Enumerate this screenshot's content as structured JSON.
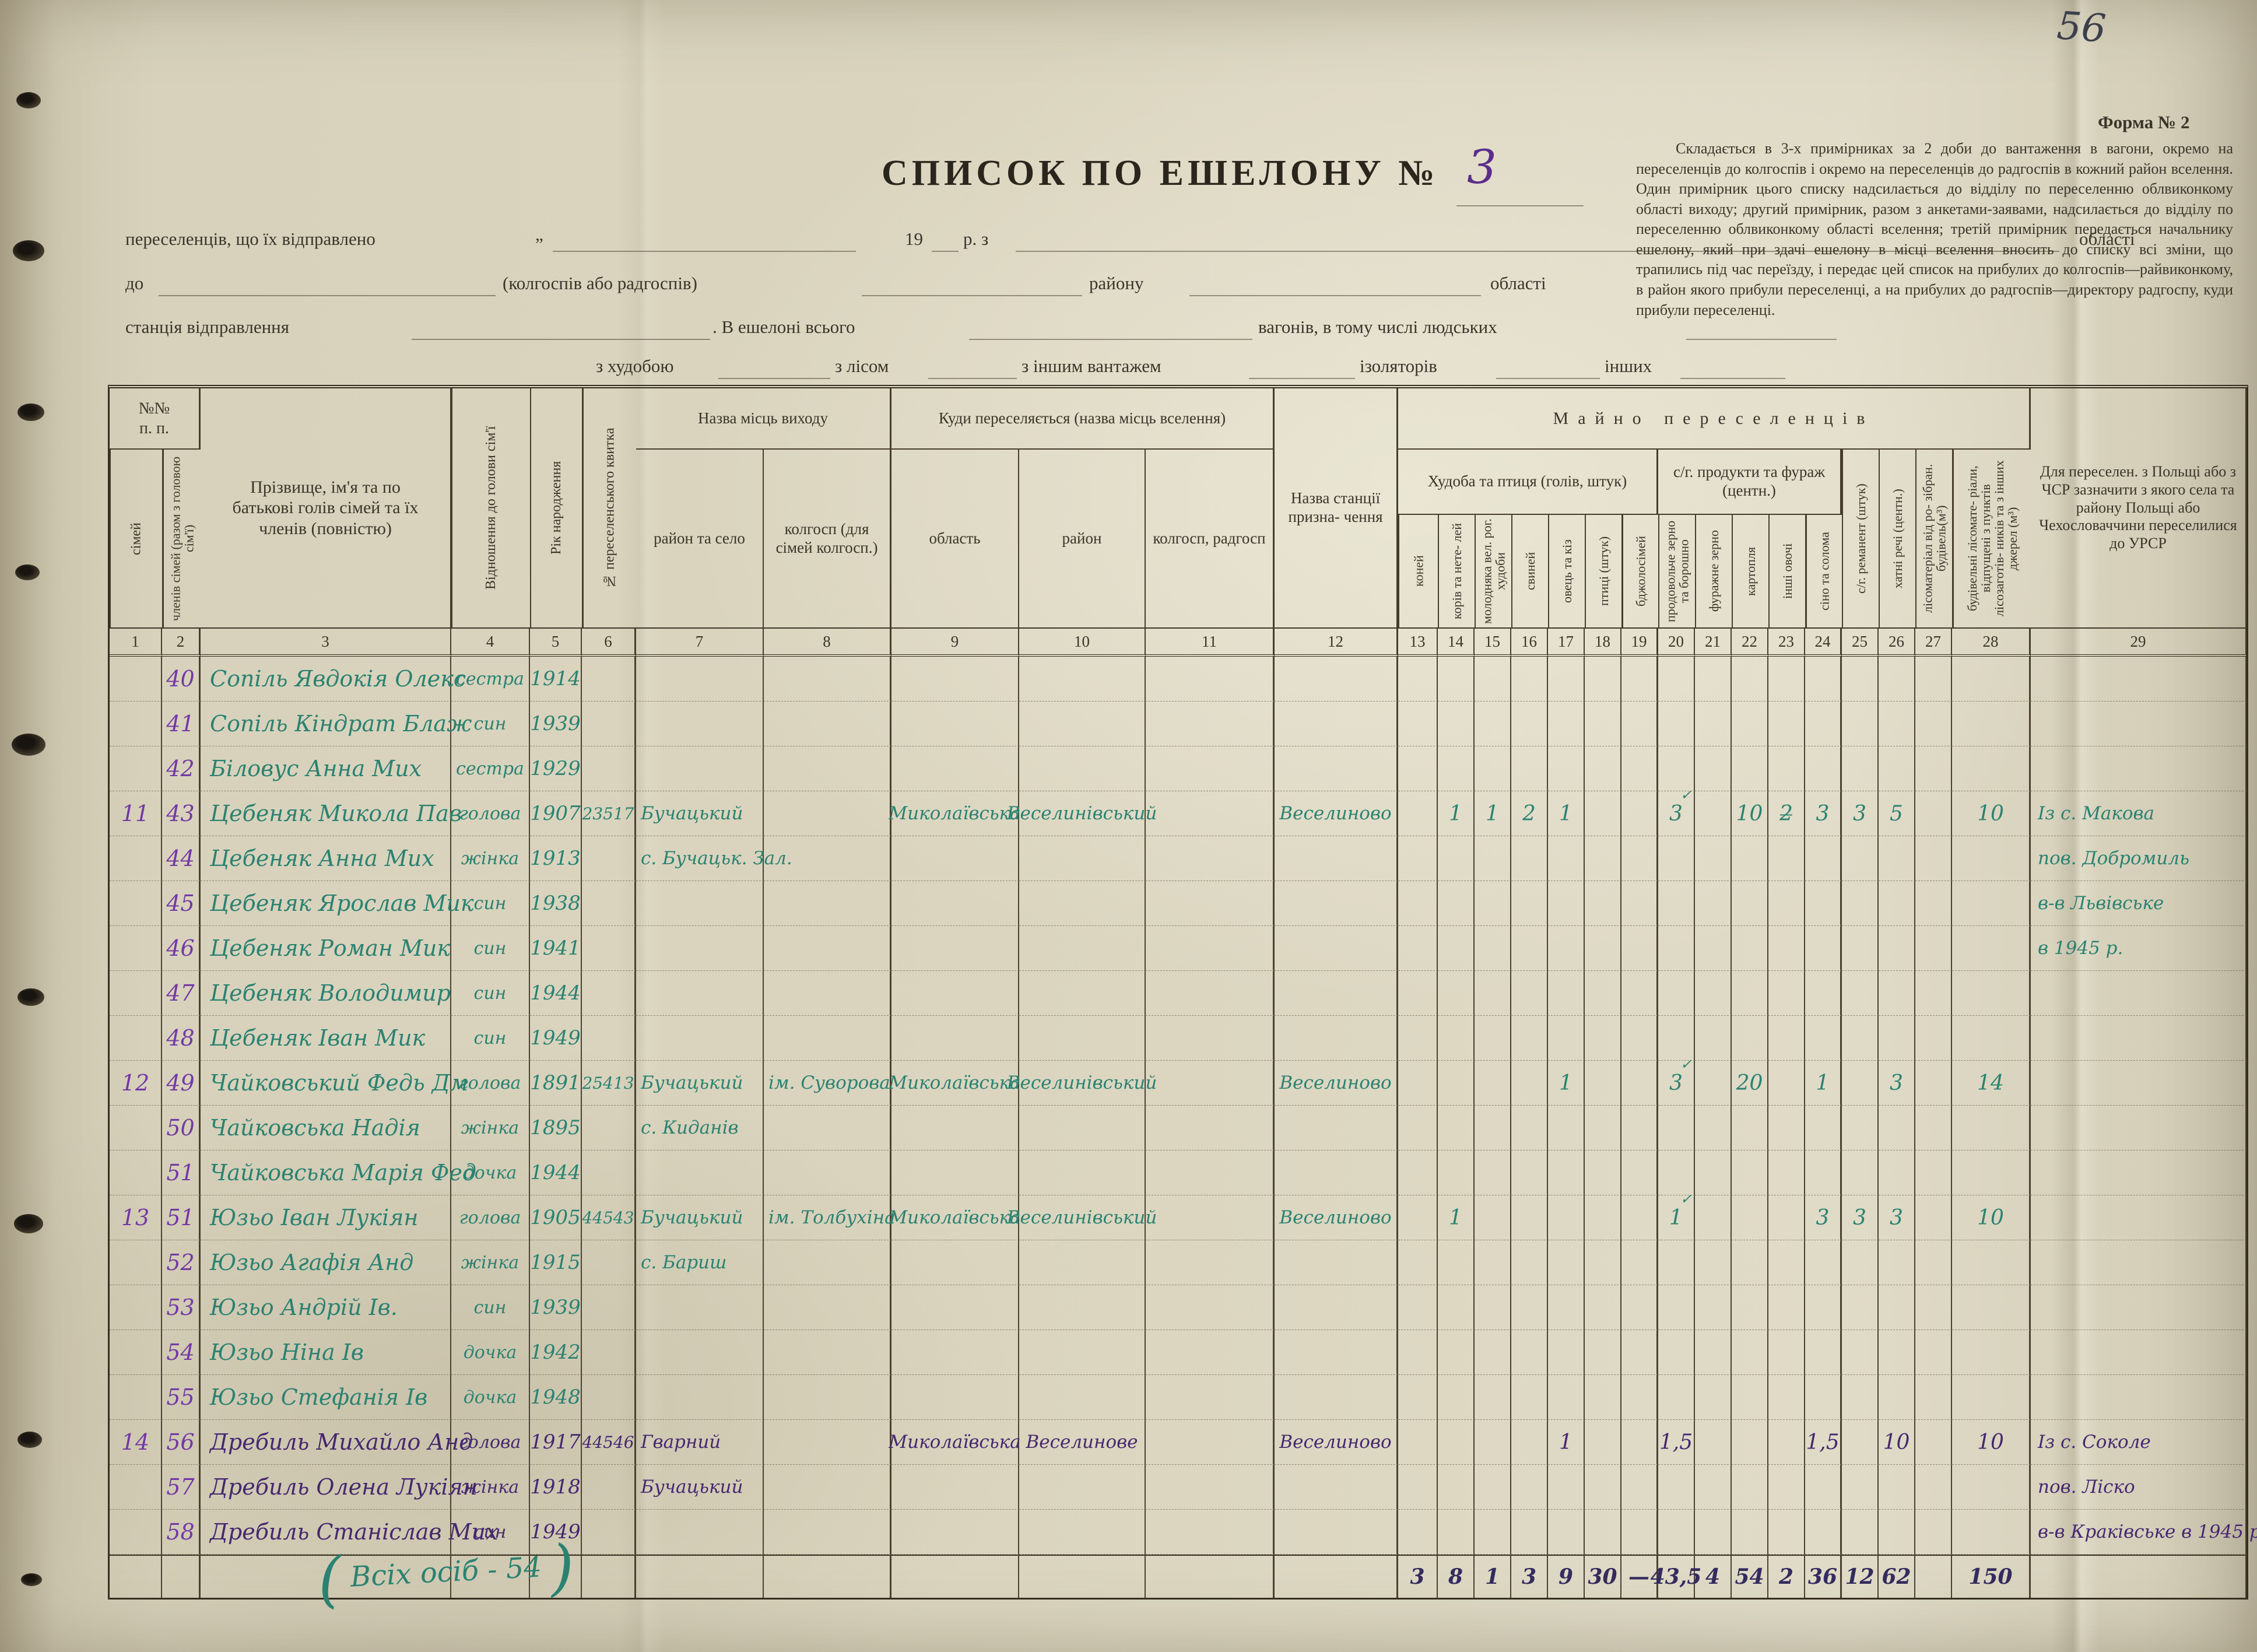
{
  "page": {
    "number": "56",
    "form_label": "Форма № 2"
  },
  "title": {
    "text": "СПИСОК ПО ЕШЕЛОНУ №",
    "number": "3"
  },
  "instructions": "Складається в 3-х примірниках за 2 доби до вантаження в вагони, окремо на переселенців до колгоспів і окремо на переселенців до радгоспів в кожний район вселення. Один примірник цього списку надсилається до відділу по переселенню облвиконкому області виходу; другий примірник, разом з анкетами-заявами, надсилається до відділу по переселенню облвиконкому області вселення; третій примірник передається начальнику ешелону, який при здачі ешелону в місці вселення вносить до списку всі зміни, що трапились під час переїзду, і передає цей список на прибулих до колгоспів—райвиконкому, в район якого прибули переселенці, а на прибулих до радгоспів—директору радгоспу, куди прибули переселенці.",
  "form": {
    "line1_label": "переселенців, що їх відправлено",
    "quote_open": "„",
    "year": "19",
    "year_suffix": "р. з",
    "line1_oblast": "області",
    "line2_to": "до",
    "line2_note": "(колгоспів або радгоспів)",
    "line2_raion": "району",
    "line2_oblast": "області",
    "line3_station": "станція відправлення",
    "line3_total": ". В ешелоні всього",
    "line3_wagons": "вагонів, в тому числі людських",
    "line4_cattle": "з худобою",
    "line4_timber": "з лісом",
    "line4_cargo": "з іншим вантажем",
    "line4_isolators": "ізоляторів",
    "line4_other": "інших"
  },
  "ink_colors": {
    "teal": "#2b8271",
    "violet": "#46286f",
    "purple": "#7439a4",
    "indigo": "#342b5e"
  },
  "table": {
    "headers": {
      "nn": "№№\nп. п.",
      "c1": "сімей",
      "c2": "членів сімей (разом з головою сім'ї)",
      "c3": "Прізвище, ім'я та по батькові голів сімей та їх членів (повністю)",
      "c4": "Відношення до голови сім'ї",
      "c5": "Рік народження",
      "c6": "№ переселенського квитка",
      "g_exit": "Назва місць виходу",
      "c7": "район та село",
      "c8": "колгосп (для сімей колгосп.)",
      "g_dest": "Куди переселяється (назва місць вселення)",
      "c9": "область",
      "c10": "район",
      "c11": "колгосп, радгосп",
      "c12": "Назва станції призна- чення",
      "g_property": "Майно переселенців",
      "g_livestock": "Худоба та птиця (голів, штук)",
      "c13": "коней",
      "c14": "корів та нете- лей",
      "c15": "молодняка вел. рог. худоби",
      "c16": "свиней",
      "c17": "овець та кіз",
      "c18": "птиці (штук)",
      "c19": "бджолосімей",
      "g_products": "с/г. продукти та фураж (центн.)",
      "c20": "продовольче зерно та борошно",
      "c21": "фуражне зерно",
      "c22": "картопля",
      "c23": "інші овочі",
      "c24": "сіно та солома",
      "c25": "с/г. реманент (штук)",
      "c26": "хатні речі (центн.)",
      "c27": "лісоматеріал від ро- зібран. будівель(м³)",
      "c28": "будівельні лісомате- ріали, відпущені з пунктів лісозаготів- ників та з інших джерел (м³)",
      "c29": "Для переселен. з Польщі або з ЧСР зазначити з якого села та району Польщі або Чехословаччини переселилися до УРСР"
    },
    "col_numbers": [
      "1",
      "2",
      "3",
      "4",
      "5",
      "6",
      "7",
      "8",
      "9",
      "10",
      "11",
      "12",
      "13",
      "14",
      "15",
      "16",
      "17",
      "18",
      "19",
      "20",
      "21",
      "22",
      "23",
      "24",
      "25",
      "26",
      "27",
      "28",
      "29"
    ],
    "rows": [
      {
        "c2": "40",
        "c3": "Сопіль Явдокія Олекс",
        "c4": "сестра",
        "c5": "1914",
        "ink": "teal"
      },
      {
        "c2": "41",
        "c3": "Сопіль Кіндрат Блаж",
        "c4": "син",
        "c5": "1939",
        "ink": "teal"
      },
      {
        "c2": "42",
        "c3": "Біловус Анна Мих",
        "c4": "сестра",
        "c5": "1929",
        "ink": "teal"
      },
      {
        "c1": "11",
        "c2": "43",
        "c3": "Цебеняк Микола Пав",
        "c4": "голова",
        "c5": "1907",
        "c6": "23517",
        "c7": "Бучацький",
        "c9": "Миколаївська",
        "c10": "Веселинівський",
        "c12": "Веселиново",
        "c14": "1",
        "c15": "1",
        "c16": "2",
        "c17": "1",
        "c20": "3",
        "c22": "10",
        "c23": "2̶",
        "c24": "3",
        "c25": "3",
        "c26": "5",
        "c28": "10",
        "c29": "Із с. Макова",
        "checks": [
          "c20"
        ],
        "ink": "teal"
      },
      {
        "c2": "44",
        "c3": "Цебеняк Анна Мих",
        "c4": "жінка",
        "c5": "1913",
        "c7": "с. Бучацьк. Зал.",
        "c29": "пов. Добромиль",
        "ink": "teal"
      },
      {
        "c2": "45",
        "c3": "Цебеняк Ярослав Мик",
        "c4": "син",
        "c5": "1938",
        "c29": "в-в Львівське",
        "ink": "teal"
      },
      {
        "c2": "46",
        "c3": "Цебеняк Роман Мик",
        "c4": "син",
        "c5": "1941",
        "c29": "в 1945 р.",
        "ink": "teal"
      },
      {
        "c2": "47",
        "c3": "Цебеняк Володимир",
        "c4": "син",
        "c5": "1944",
        "ink": "teal"
      },
      {
        "c2": "48",
        "c3": "Цебеняк Іван Мик",
        "c4": "син",
        "c5": "1949",
        "ink": "teal"
      },
      {
        "c1": "12",
        "c2": "49",
        "c3": "Чайковський Федь Дм",
        "c4": "голова",
        "c5": "1891",
        "c6": "25413",
        "c7": "Бучацький",
        "c8": "ім. Суворова",
        "c9": "Миколаївська",
        "c10": "Веселинівський",
        "c12": "Веселиново",
        "c17": "1",
        "c20": "3",
        "c22": "20",
        "c24": "1",
        "c26": "3",
        "c28": "14",
        "checks": [
          "c20"
        ],
        "ink": "teal"
      },
      {
        "c2": "50",
        "c3": "Чайковська Надія",
        "c4": "жінка",
        "c5": "1895",
        "c7": "с. Киданів",
        "ink": "teal"
      },
      {
        "c2": "51",
        "c3": "Чайковська Марія Фед",
        "c4": "дочка",
        "c5": "1944",
        "ink": "teal"
      },
      {
        "c1": "13",
        "c2": "51",
        "c3": "Юзьо Іван Лукіян",
        "c4": "голова",
        "c5": "1905",
        "c6": "44543",
        "c7": "Бучацький",
        "c8": "ім. Толбухіна",
        "c9": "Миколаївська",
        "c10": "Веселинівський",
        "c12": "Веселиново",
        "c14": "1",
        "c20": "1",
        "c24": "3",
        "c25": "3",
        "c26": "3",
        "c28": "10",
        "checks": [
          "c20"
        ],
        "ink": "teal"
      },
      {
        "c2": "52",
        "c3": "Юзьо Агафія Анд",
        "c4": "жінка",
        "c5": "1915",
        "c7": "с. Бариш",
        "ink": "teal"
      },
      {
        "c2": "53",
        "c3": "Юзьо Андрій Ів.",
        "c4": "син",
        "c5": "1939",
        "ink": "teal"
      },
      {
        "c2": "54",
        "c3": "Юзьо Ніна Ів",
        "c4": "дочка",
        "c5": "1942",
        "ink": "teal"
      },
      {
        "c2": "55",
        "c3": "Юзьо Стефанія Ів",
        "c4": "дочка",
        "c5": "1948",
        "ink": "teal"
      },
      {
        "c1": "14",
        "c2": "56",
        "c3": "Дребиль Михайло Анд",
        "c4": "голова",
        "c5": "1917",
        "c6": "44546",
        "c7": "Гварний",
        "c9": "Миколаївська",
        "c10": "Веселинове",
        "c12": "Веселиново",
        "c17": "1",
        "c20": "1,5",
        "c24": "1,5",
        "c26": "10",
        "c28": "10",
        "c29": "Із с. Соколе",
        "ink": "violet"
      },
      {
        "c2": "57",
        "c3": "Дребиль Олена Лукіян",
        "c4": "жінка",
        "c5": "1918",
        "c7": "Бучацький",
        "c29": "пов. Ліско",
        "ink": "violet"
      },
      {
        "c2": "58",
        "c3": "Дребиль Станіслав Мих",
        "c4": "син",
        "c5": "1949",
        "c29": "в-в Краківське в 1945 р.",
        "ink": "violet"
      }
    ],
    "totals": {
      "c13": "3",
      "c14": "8",
      "c15": "1",
      "c16": "3",
      "c17": "9",
      "c18": "30",
      "c19": "—",
      "c20": "43,5",
      "c21": "4",
      "c22": "54",
      "c23": "2",
      "c24": "36",
      "c25": "12",
      "c26": "62",
      "c28": "150"
    },
    "footnote_open": "(",
    "footnote_text": "Всіх осіб - 54",
    "footnote_close": ")"
  }
}
